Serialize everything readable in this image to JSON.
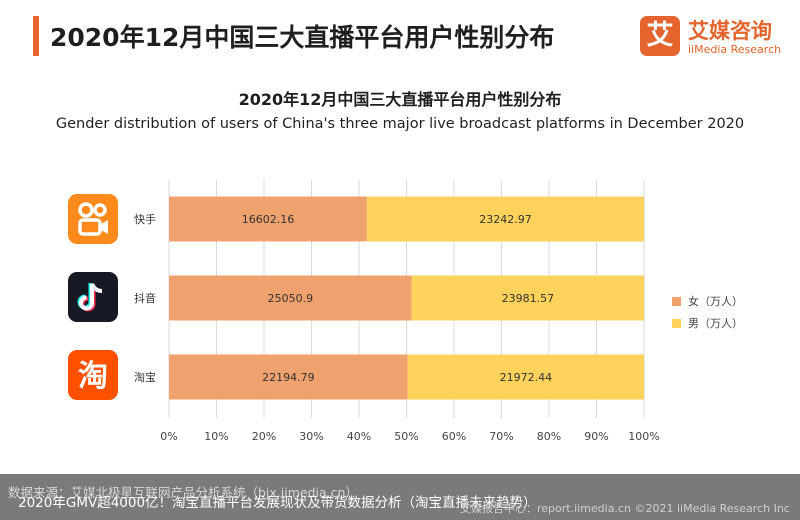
{
  "header": {
    "title": "2020年12月中国三大直播平台用户性别分布",
    "brand": {
      "logo_glyph": "艾",
      "name": "艾媒咨询",
      "sub": "iiMedia Research"
    }
  },
  "chart_data": {
    "type": "bar",
    "orientation": "horizontal",
    "stacked": "percent",
    "title": "2020年12月中国三大直播平台用户性别分布",
    "subtitle": "Gender distribution of users of China's three major live broadcast platforms in December 2020",
    "categories": [
      "快手",
      "抖音",
      "淘宝"
    ],
    "series": [
      {
        "name": "女（万人）",
        "values": [
          16602.16,
          25050.9,
          22194.79
        ],
        "color": "#efa16e"
      },
      {
        "name": "男（万人）",
        "values": [
          23242.97,
          23981.57,
          21972.44
        ],
        "color": "#fed25b"
      }
    ],
    "x_ticks": [
      "0%",
      "10%",
      "20%",
      "30%",
      "40%",
      "50%",
      "60%",
      "70%",
      "80%",
      "90%",
      "100%"
    ],
    "xlim": [
      0,
      100
    ],
    "grid": true,
    "legend_position": "right"
  },
  "platform_icons": [
    "kuaishou-icon",
    "douyin-icon",
    "taobao-icon"
  ],
  "footer": {
    "source": "数据来源：艾媒北极星互联网产品分析系统（bjx.iimedia.cn）",
    "caption": "2020年GMV超4000亿！淘宝直播平台发展现状及带货数据分析（淘宝直播未来趋势）",
    "credit": "艾媒报告中心：report.iimedia.cn   ©2021 iiMedia Research Inc"
  }
}
